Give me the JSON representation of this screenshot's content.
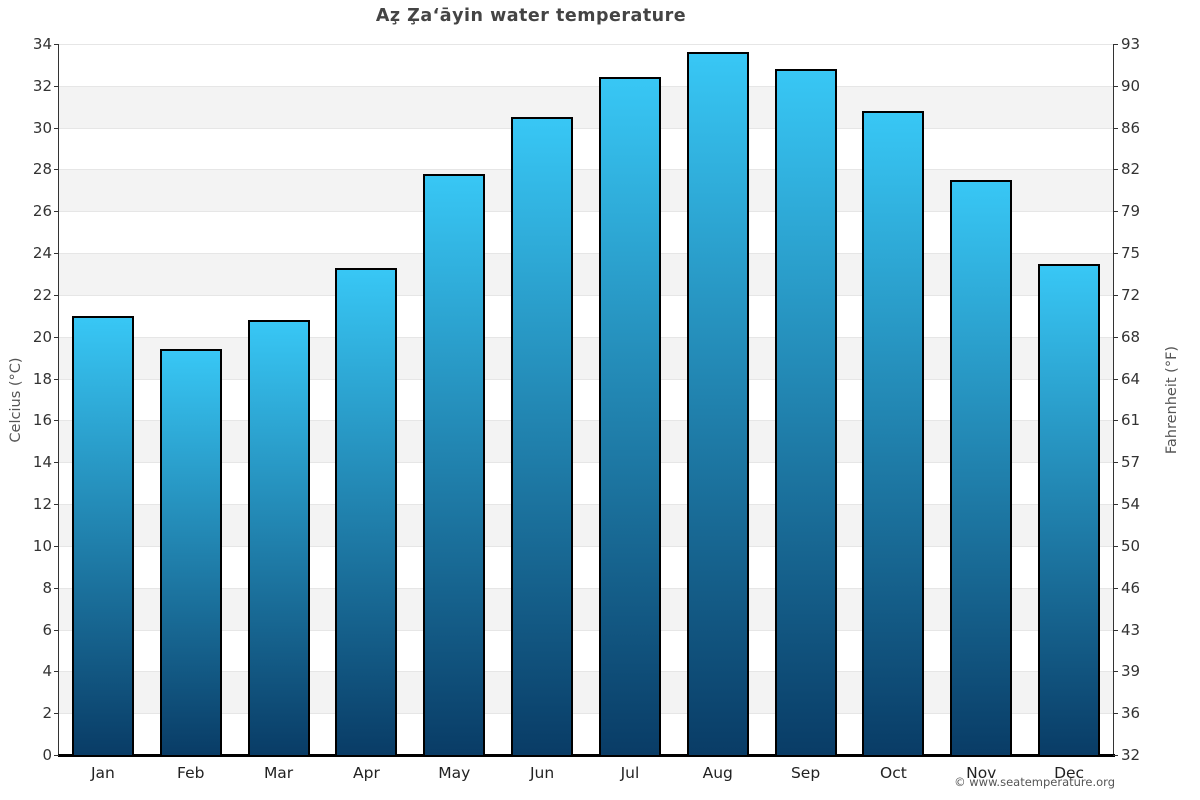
{
  "title": "Az̧ Z̧a‘āyin water temperature",
  "attribution": "© www.seatemperature.org",
  "chart_data": {
    "type": "bar",
    "title": "Az̧ Z̧a‘āyin water temperature",
    "categories": [
      "Jan",
      "Feb",
      "Mar",
      "Apr",
      "May",
      "Jun",
      "Jul",
      "Aug",
      "Sep",
      "Oct",
      "Nov",
      "Dec"
    ],
    "values": [
      21.0,
      19.4,
      20.8,
      23.3,
      27.8,
      30.5,
      32.4,
      33.6,
      32.8,
      30.8,
      27.5,
      23.5
    ],
    "values_unit": "°C",
    "ylabel_left": "Celcius (°C)",
    "ylabel_right": "Fahrenheit (°F)",
    "ylim": [
      0,
      34
    ],
    "celsius_ticks": [
      0,
      2,
      4,
      6,
      8,
      10,
      12,
      14,
      16,
      18,
      20,
      22,
      24,
      26,
      28,
      30,
      32,
      34
    ],
    "fahrenheit_tick_labels": [
      "32",
      "36",
      "39",
      "43",
      "46",
      "50",
      "54",
      "57",
      "61",
      "64",
      "68",
      "72",
      "75",
      "79",
      "82",
      "86",
      "90",
      "93"
    ],
    "grid": true,
    "legend": "none",
    "colors": {
      "bar_gradient_top": "#38c7f5",
      "bar_gradient_bottom": "#093c66",
      "bar_border": "#000000",
      "stripe": "#f3f3f3",
      "gridline": "#e6e6e6",
      "axis": "#333333",
      "title_text": "#444444",
      "tick_text": "#333333",
      "month_text": "#222222",
      "axis_title_text": "#555555"
    }
  }
}
